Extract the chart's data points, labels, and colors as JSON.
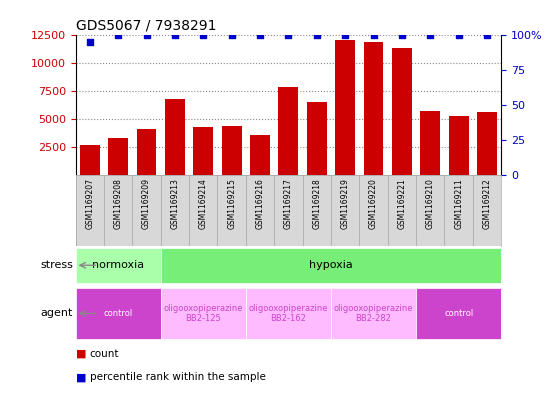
{
  "title": "GDS5067 / 7938291",
  "samples": [
    "GSM1169207",
    "GSM1169208",
    "GSM1169209",
    "GSM1169213",
    "GSM1169214",
    "GSM1169215",
    "GSM1169216",
    "GSM1169217",
    "GSM1169218",
    "GSM1169219",
    "GSM1169220",
    "GSM1169221",
    "GSM1169210",
    "GSM1169211",
    "GSM1169212"
  ],
  "counts": [
    2700,
    3300,
    4100,
    6800,
    4300,
    4400,
    3600,
    7900,
    6500,
    12100,
    11900,
    11400,
    5700,
    5300,
    5600
  ],
  "percentile_ranks": [
    95,
    100,
    100,
    100,
    100,
    100,
    100,
    100,
    100,
    100,
    100,
    100,
    100,
    100,
    100
  ],
  "bar_color": "#cc0000",
  "dot_color": "#0000cc",
  "ylim_left": [
    0,
    12500
  ],
  "ylim_right": [
    0,
    100
  ],
  "yticks_left": [
    2500,
    5000,
    7500,
    10000,
    12500
  ],
  "yticks_right": [
    0,
    25,
    50,
    75,
    100
  ],
  "ytick_labels_right": [
    "0",
    "25",
    "50",
    "75",
    "100%"
  ],
  "stress_groups": [
    {
      "label": "normoxia",
      "start": 0,
      "end": 3,
      "color": "#aaffaa"
    },
    {
      "label": "hypoxia",
      "start": 3,
      "end": 15,
      "color": "#77ee77"
    }
  ],
  "agent_groups": [
    {
      "label": "control",
      "start": 0,
      "end": 3,
      "color": "#cc44cc",
      "text_color": "#ffffff"
    },
    {
      "label": "oligooxopiperazine\nBB2-125",
      "start": 3,
      "end": 6,
      "color": "#ffbbff",
      "text_color": "#cc44cc"
    },
    {
      "label": "oligooxopiperazine\nBB2-162",
      "start": 6,
      "end": 9,
      "color": "#ffbbff",
      "text_color": "#cc44cc"
    },
    {
      "label": "oligooxopiperazine\nBB2-282",
      "start": 9,
      "end": 12,
      "color": "#ffbbff",
      "text_color": "#cc44cc"
    },
    {
      "label": "control",
      "start": 12,
      "end": 15,
      "color": "#cc44cc",
      "text_color": "#ffffff"
    }
  ],
  "legend_items": [
    {
      "label": "count",
      "color": "#cc0000"
    },
    {
      "label": "percentile rank within the sample",
      "color": "#0000cc"
    }
  ],
  "background_color": "#ffffff",
  "title_fontsize": 10,
  "bar_width": 0.7
}
